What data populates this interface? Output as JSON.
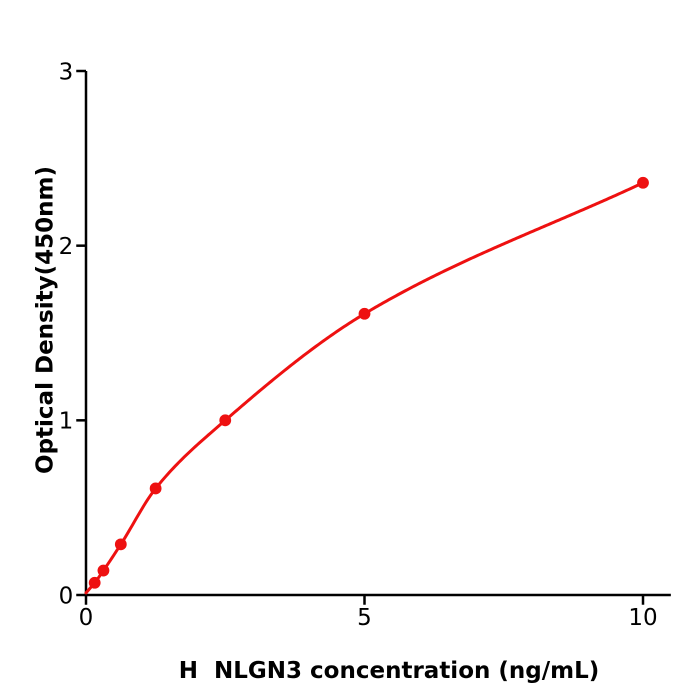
{
  "chart_data": {
    "type": "line",
    "title": "",
    "xlabel": "H  NLGN3 concentration (ng/mL)",
    "ylabel": "Optical Density(450nm)",
    "x": [
      0.156,
      0.313,
      0.625,
      1.25,
      2.5,
      5,
      10
    ],
    "y": [
      0.07,
      0.14,
      0.29,
      0.61,
      1.0,
      1.61,
      2.36
    ],
    "curve_start": {
      "x": 0,
      "y": 0.012
    },
    "x_ticks": [
      0,
      5,
      10
    ],
    "x_tick_labels": [
      "0",
      "5",
      "10"
    ],
    "y_ticks": [
      0,
      1,
      2,
      3
    ],
    "y_tick_labels": [
      "0",
      "1",
      "2",
      "3"
    ],
    "xlim": [
      0,
      10.5
    ],
    "ylim": [
      0,
      3
    ],
    "grid": false,
    "legend": null,
    "line_color": "#ee1111",
    "marker_color": "#ee1111",
    "axis_color": "#000000",
    "text_color": "#000000",
    "background_color": "#ffffff"
  }
}
